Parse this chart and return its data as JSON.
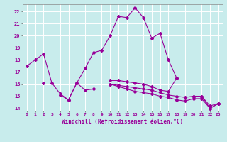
{
  "xlabel": "Windchill (Refroidissement éolien,°C)",
  "background_color": "#c8ecec",
  "grid_color": "#ffffff",
  "line_color": "#990099",
  "xlim": [
    -0.5,
    23.5
  ],
  "ylim": [
    13.8,
    22.6
  ],
  "yticks": [
    14,
    15,
    16,
    17,
    18,
    19,
    20,
    21,
    22
  ],
  "xticks": [
    0,
    1,
    2,
    3,
    4,
    5,
    6,
    7,
    8,
    9,
    10,
    11,
    12,
    13,
    14,
    15,
    16,
    17,
    18,
    19,
    20,
    21,
    22,
    23
  ],
  "lines": [
    [
      17.5,
      18.0,
      18.5,
      16.1,
      15.2,
      14.7,
      16.1,
      17.3,
      18.6,
      18.8,
      20.0,
      21.6,
      21.5,
      22.3,
      21.5,
      19.8,
      20.2,
      18.0,
      16.5,
      null,
      null,
      null,
      null,
      null
    ],
    [
      null,
      null,
      16.1,
      null,
      15.1,
      14.7,
      16.1,
      15.5,
      15.6,
      null,
      16.3,
      16.3,
      16.2,
      16.1,
      16.0,
      15.8,
      15.5,
      15.4,
      16.5,
      null,
      15.0,
      15.0,
      14.0,
      14.4
    ],
    [
      null,
      null,
      null,
      null,
      null,
      null,
      null,
      null,
      null,
      null,
      16.0,
      15.9,
      15.8,
      15.7,
      15.6,
      15.5,
      15.3,
      15.1,
      15.0,
      14.9,
      15.0,
      15.0,
      14.2,
      14.4
    ],
    [
      null,
      null,
      null,
      null,
      null,
      null,
      null,
      null,
      null,
      null,
      16.0,
      15.8,
      15.6,
      15.4,
      15.3,
      15.2,
      15.0,
      14.9,
      14.7,
      14.6,
      14.8,
      14.8,
      14.0,
      14.4
    ]
  ]
}
